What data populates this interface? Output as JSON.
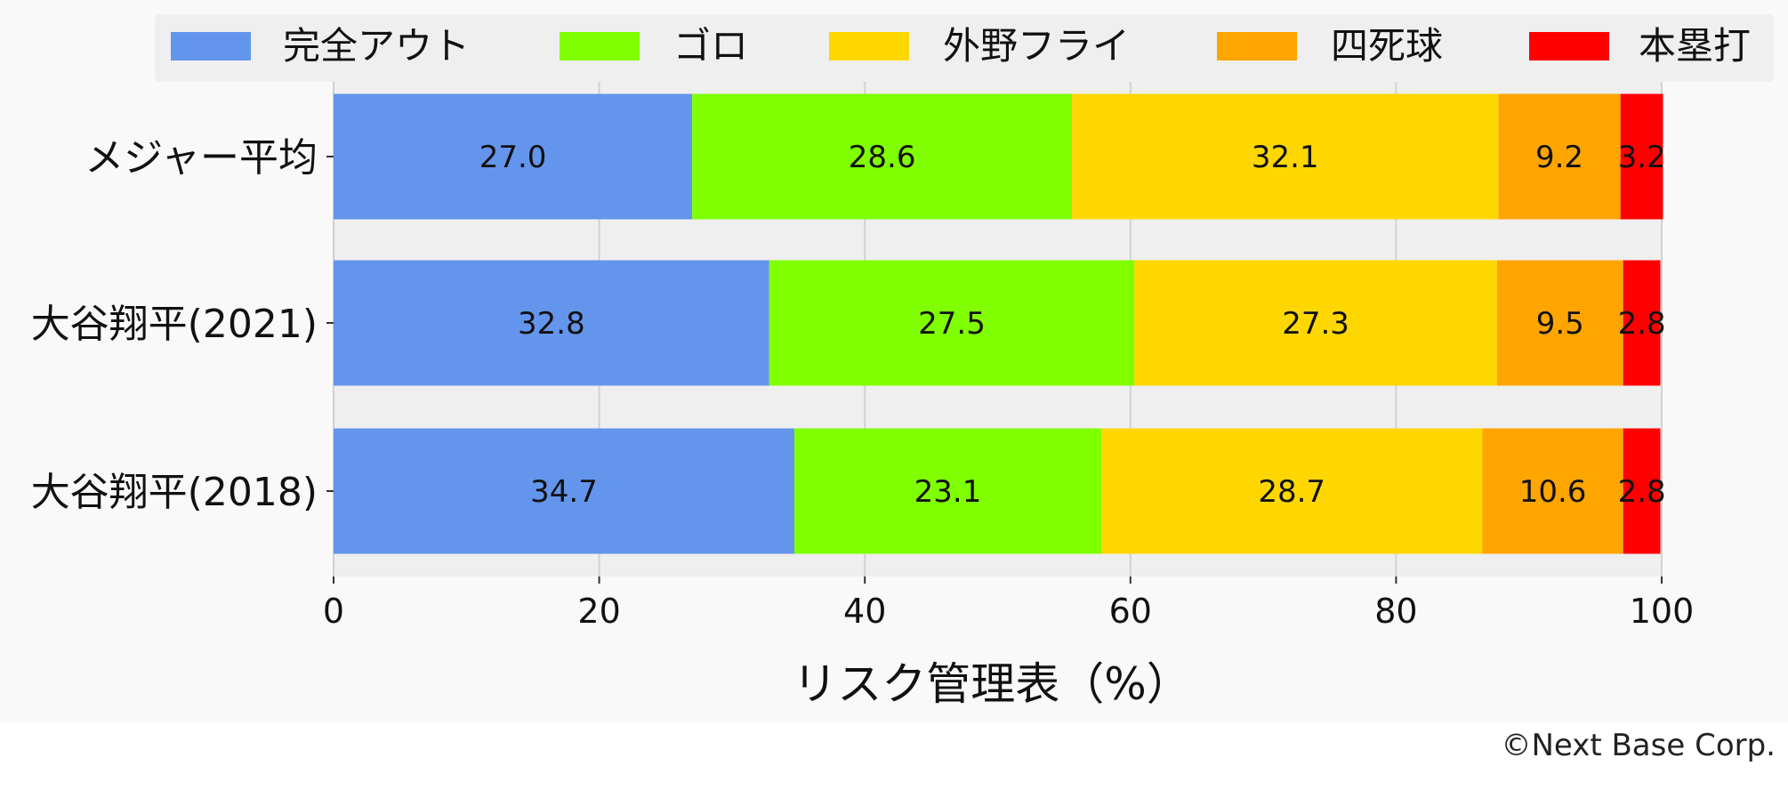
{
  "chart_data": {
    "type": "bar",
    "orientation": "horizontal",
    "stacked": true,
    "categories": [
      "メジャー平均",
      "大谷翔平(2021)",
      "大谷翔平(2018)"
    ],
    "series": [
      {
        "name": "完全アウト",
        "color": "#6495ED",
        "values": [
          27.0,
          32.8,
          34.7
        ]
      },
      {
        "name": "ゴロ",
        "color": "#7FFF00",
        "values": [
          28.6,
          27.5,
          23.1
        ]
      },
      {
        "name": "外野フライ",
        "color": "#FFD700",
        "values": [
          32.1,
          27.3,
          28.7
        ]
      },
      {
        "name": "四死球",
        "color": "#FFA500",
        "values": [
          9.2,
          9.5,
          10.6
        ]
      },
      {
        "name": "本塁打",
        "color": "#FF0000",
        "values": [
          3.2,
          2.8,
          2.8
        ]
      }
    ],
    "xlabel": "リスク管理表（%）",
    "xlim": [
      0,
      100
    ],
    "xticks": [
      0,
      20,
      40,
      60,
      80,
      100
    ],
    "grid": true,
    "legend_position": "top"
  },
  "credit": "©Next Base Corp."
}
